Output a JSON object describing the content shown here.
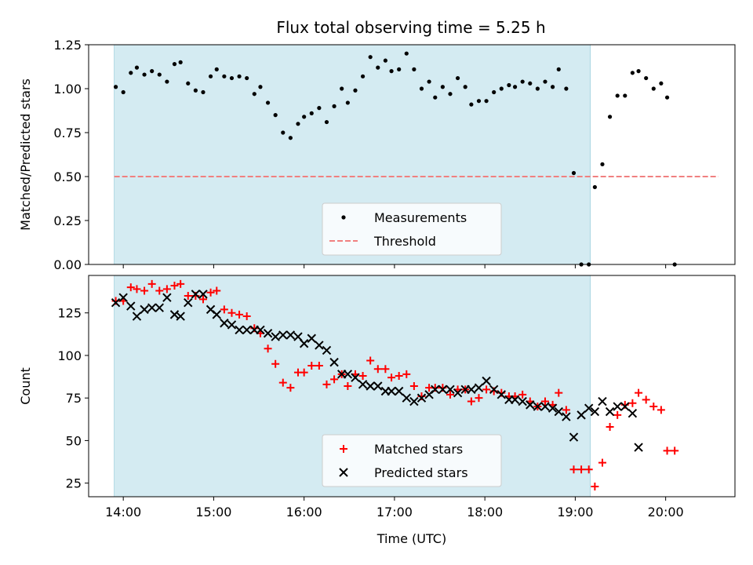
{
  "title": "Flux total observing time = 5.25 h",
  "chart_data": [
    {
      "type": "scatter",
      "ylabel": "Matched/Predicted stars",
      "xlabel": "",
      "xlim": [
        "13:37",
        "20:46"
      ],
      "ylim": [
        0,
        1.25
      ],
      "yticks": [
        "0.00",
        "0.25",
        "0.50",
        "0.75",
        "1.00",
        "1.25"
      ],
      "shaded_interval": [
        "13:54",
        "19:10"
      ],
      "threshold": {
        "name": "Threshold",
        "y": 0.5,
        "x_range": [
          "13:54",
          "20:35"
        ],
        "color": "#f08080"
      },
      "series": [
        {
          "name": "Measurements",
          "color": "#000000",
          "points": [
            [
              "13:55",
              1.01
            ],
            [
              "14:00",
              0.98
            ],
            [
              "14:05",
              1.09
            ],
            [
              "14:09",
              1.12
            ],
            [
              "14:14",
              1.08
            ],
            [
              "14:19",
              1.1
            ],
            [
              "14:24",
              1.08
            ],
            [
              "14:29",
              1.04
            ],
            [
              "14:34",
              1.14
            ],
            [
              "14:38",
              1.15
            ],
            [
              "14:43",
              1.03
            ],
            [
              "14:48",
              0.99
            ],
            [
              "14:53",
              0.98
            ],
            [
              "14:58",
              1.07
            ],
            [
              "15:02",
              1.11
            ],
            [
              "15:07",
              1.07
            ],
            [
              "15:12",
              1.06
            ],
            [
              "15:17",
              1.07
            ],
            [
              "15:22",
              1.06
            ],
            [
              "15:27",
              0.97
            ],
            [
              "15:31",
              1.01
            ],
            [
              "15:36",
              0.92
            ],
            [
              "15:41",
              0.85
            ],
            [
              "15:46",
              0.75
            ],
            [
              "15:51",
              0.72
            ],
            [
              "15:56",
              0.8
            ],
            [
              "16:00",
              0.84
            ],
            [
              "16:05",
              0.86
            ],
            [
              "16:10",
              0.89
            ],
            [
              "16:15",
              0.81
            ],
            [
              "16:20",
              0.9
            ],
            [
              "16:25",
              1.0
            ],
            [
              "16:29",
              0.92
            ],
            [
              "16:34",
              0.99
            ],
            [
              "16:39",
              1.07
            ],
            [
              "16:44",
              1.18
            ],
            [
              "16:49",
              1.12
            ],
            [
              "16:54",
              1.16
            ],
            [
              "16:58",
              1.1
            ],
            [
              "17:03",
              1.11
            ],
            [
              "17:08",
              1.2
            ],
            [
              "17:13",
              1.11
            ],
            [
              "17:18",
              1.0
            ],
            [
              "17:23",
              1.04
            ],
            [
              "17:27",
              0.95
            ],
            [
              "17:32",
              1.01
            ],
            [
              "17:37",
              0.97
            ],
            [
              "17:42",
              1.06
            ],
            [
              "17:47",
              1.01
            ],
            [
              "17:51",
              0.91
            ],
            [
              "17:56",
              0.93
            ],
            [
              "18:01",
              0.93
            ],
            [
              "18:06",
              0.98
            ],
            [
              "18:11",
              1.0
            ],
            [
              "18:16",
              1.02
            ],
            [
              "18:20",
              1.01
            ],
            [
              "18:25",
              1.04
            ],
            [
              "18:30",
              1.03
            ],
            [
              "18:35",
              1.0
            ],
            [
              "18:40",
              1.04
            ],
            [
              "18:45",
              1.01
            ],
            [
              "18:49",
              1.11
            ],
            [
              "18:54",
              1.0
            ],
            [
              "18:59",
              0.52
            ],
            [
              "19:04",
              0.0
            ],
            [
              "19:09",
              0.0
            ],
            [
              "19:13",
              0.44
            ],
            [
              "19:18",
              0.57
            ],
            [
              "19:23",
              0.84
            ],
            [
              "19:28",
              0.96
            ],
            [
              "19:33",
              0.96
            ],
            [
              "19:38",
              1.09
            ],
            [
              "19:42",
              1.1
            ],
            [
              "19:47",
              1.06
            ],
            [
              "19:52",
              1.0
            ],
            [
              "19:57",
              1.03
            ],
            [
              "20:01",
              0.95
            ],
            [
              "20:06",
              0.0
            ]
          ]
        }
      ],
      "legend": {
        "placement": "bottom-center",
        "entries": [
          "Measurements",
          "Threshold"
        ]
      }
    },
    {
      "type": "scatter",
      "xlabel": "Time (UTC)",
      "ylabel": "Count",
      "xlim": [
        "13:37",
        "20:46"
      ],
      "ylim": [
        17,
        147
      ],
      "xticks": [
        "14:00",
        "15:00",
        "16:00",
        "17:00",
        "18:00",
        "19:00",
        "20:00"
      ],
      "yticks": [
        "25",
        "50",
        "75",
        "100",
        "125"
      ],
      "shaded_interval": [
        "13:54",
        "19:10"
      ],
      "series": [
        {
          "name": "Matched stars",
          "marker": "plus",
          "color": "#ff0000",
          "points": [
            [
              "13:55",
              132
            ],
            [
              "14:00",
              132
            ],
            [
              "14:05",
              140
            ],
            [
              "14:09",
              139
            ],
            [
              "14:14",
              138
            ],
            [
              "14:19",
              142
            ],
            [
              "14:24",
              138
            ],
            [
              "14:29",
              139
            ],
            [
              "14:34",
              141
            ],
            [
              "14:38",
              142
            ],
            [
              "14:43",
              135
            ],
            [
              "14:48",
              135
            ],
            [
              "14:53",
              133
            ],
            [
              "14:58",
              137
            ],
            [
              "15:02",
              138
            ],
            [
              "15:07",
              127
            ],
            [
              "15:12",
              125
            ],
            [
              "15:17",
              124
            ],
            [
              "15:22",
              123
            ],
            [
              "15:27",
              116
            ],
            [
              "15:31",
              113
            ],
            [
              "15:36",
              104
            ],
            [
              "15:41",
              95
            ],
            [
              "15:46",
              84
            ],
            [
              "15:51",
              81
            ],
            [
              "15:56",
              90
            ],
            [
              "16:00",
              90
            ],
            [
              "16:05",
              94
            ],
            [
              "16:10",
              94
            ],
            [
              "16:15",
              83
            ],
            [
              "16:20",
              86
            ],
            [
              "16:25",
              89
            ],
            [
              "16:29",
              82
            ],
            [
              "16:34",
              89
            ],
            [
              "16:39",
              88
            ],
            [
              "16:44",
              97
            ],
            [
              "16:49",
              92
            ],
            [
              "16:54",
              92
            ],
            [
              "16:58",
              87
            ],
            [
              "17:03",
              88
            ],
            [
              "17:08",
              89
            ],
            [
              "17:13",
              82
            ],
            [
              "17:18",
              76
            ],
            [
              "17:23",
              81
            ],
            [
              "17:27",
              81
            ],
            [
              "17:32",
              81
            ],
            [
              "17:37",
              77
            ],
            [
              "17:42",
              80
            ],
            [
              "17:47",
              80
            ],
            [
              "17:51",
              73
            ],
            [
              "17:56",
              75
            ],
            [
              "18:01",
              80
            ],
            [
              "18:06",
              79
            ],
            [
              "18:11",
              78
            ],
            [
              "18:16",
              76
            ],
            [
              "18:20",
              76
            ],
            [
              "18:25",
              77
            ],
            [
              "18:30",
              73
            ],
            [
              "18:35",
              70
            ],
            [
              "18:40",
              73
            ],
            [
              "18:45",
              71
            ],
            [
              "18:49",
              78
            ],
            [
              "18:54",
              68
            ],
            [
              "18:59",
              33
            ],
            [
              "19:04",
              33
            ],
            [
              "19:09",
              33
            ],
            [
              "19:13",
              23
            ],
            [
              "19:18",
              37
            ],
            [
              "19:23",
              58
            ],
            [
              "19:28",
              65
            ],
            [
              "19:33",
              71
            ],
            [
              "19:38",
              72
            ],
            [
              "19:42",
              78
            ],
            [
              "19:47",
              74
            ],
            [
              "19:52",
              70
            ],
            [
              "19:57",
              68
            ],
            [
              "20:01",
              44
            ],
            [
              "20:06",
              44
            ]
          ]
        },
        {
          "name": "Predicted stars",
          "marker": "x",
          "color": "#000000",
          "points": [
            [
              "13:55",
              131
            ],
            [
              "14:00",
              134
            ],
            [
              "14:05",
              129
            ],
            [
              "14:09",
              123
            ],
            [
              "14:14",
              127
            ],
            [
              "14:19",
              128
            ],
            [
              "14:24",
              128
            ],
            [
              "14:29",
              134
            ],
            [
              "14:34",
              124
            ],
            [
              "14:38",
              123
            ],
            [
              "14:43",
              131
            ],
            [
              "14:48",
              136
            ],
            [
              "14:53",
              136
            ],
            [
              "14:58",
              127
            ],
            [
              "15:02",
              124
            ],
            [
              "15:07",
              119
            ],
            [
              "15:12",
              118
            ],
            [
              "15:17",
              115
            ],
            [
              "15:22",
              115
            ],
            [
              "15:27",
              115
            ],
            [
              "15:31",
              115
            ],
            [
              "15:36",
              113
            ],
            [
              "15:41",
              111
            ],
            [
              "15:46",
              112
            ],
            [
              "15:51",
              112
            ],
            [
              "15:56",
              111
            ],
            [
              "16:00",
              107
            ],
            [
              "16:05",
              110
            ],
            [
              "16:10",
              106
            ],
            [
              "16:15",
              103
            ],
            [
              "16:20",
              96
            ],
            [
              "16:25",
              89
            ],
            [
              "16:29",
              89
            ],
            [
              "16:34",
              87
            ],
            [
              "16:39",
              83
            ],
            [
              "16:44",
              82
            ],
            [
              "16:49",
              82
            ],
            [
              "16:54",
              79
            ],
            [
              "16:58",
              79
            ],
            [
              "17:03",
              79
            ],
            [
              "17:08",
              75
            ],
            [
              "17:13",
              73
            ],
            [
              "17:18",
              75
            ],
            [
              "17:23",
              77
            ],
            [
              "17:27",
              80
            ],
            [
              "17:32",
              80
            ],
            [
              "17:37",
              80
            ],
            [
              "17:42",
              78
            ],
            [
              "17:47",
              80
            ],
            [
              "17:51",
              80
            ],
            [
              "17:56",
              81
            ],
            [
              "18:01",
              85
            ],
            [
              "18:06",
              80
            ],
            [
              "18:11",
              77
            ],
            [
              "18:16",
              74
            ],
            [
              "18:20",
              74
            ],
            [
              "18:25",
              73
            ],
            [
              "18:30",
              71
            ],
            [
              "18:35",
              70
            ],
            [
              "18:40",
              70
            ],
            [
              "18:45",
              69
            ],
            [
              "18:49",
              67
            ],
            [
              "18:54",
              64
            ],
            [
              "18:59",
              52
            ],
            [
              "19:04",
              65
            ],
            [
              "19:09",
              69
            ],
            [
              "19:13",
              67
            ],
            [
              "19:18",
              73
            ],
            [
              "19:23",
              67
            ],
            [
              "19:28",
              70
            ],
            [
              "19:33",
              70
            ],
            [
              "19:38",
              66
            ],
            [
              "19:42",
              46
            ]
          ]
        }
      ],
      "legend": {
        "placement": "bottom-center",
        "entries": [
          "Matched stars",
          "Predicted stars"
        ]
      }
    }
  ]
}
